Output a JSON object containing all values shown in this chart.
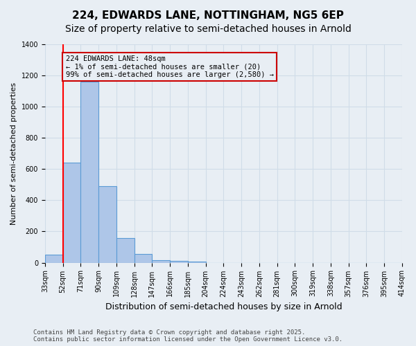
{
  "title": "224, EDWARDS LANE, NOTTINGHAM, NG5 6EP",
  "subtitle": "Size of property relative to semi-detached houses in Arnold",
  "xlabel": "Distribution of semi-detached houses by size in Arnold",
  "ylabel": "Number of semi-detached properties",
  "bin_labels": [
    "33sqm",
    "52sqm",
    "71sqm",
    "90sqm",
    "109sqm",
    "128sqm",
    "147sqm",
    "166sqm",
    "185sqm",
    "204sqm",
    "224sqm",
    "243sqm",
    "262sqm",
    "281sqm",
    "300sqm",
    "319sqm",
    "338sqm",
    "357sqm",
    "376sqm",
    "395sqm",
    "414sqm"
  ],
  "bar_values": [
    50,
    640,
    1160,
    490,
    160,
    55,
    18,
    12,
    8,
    0,
    0,
    0,
    0,
    0,
    0,
    0,
    0,
    0,
    0,
    0
  ],
  "bar_color": "#aec6e8",
  "bar_edge_color": "#5b9bd5",
  "grid_color": "#d0dce8",
  "bg_color": "#e8eef4",
  "property_line_x": 1,
  "property_sqm": 48,
  "annotation_text": "224 EDWARDS LANE: 48sqm\n← 1% of semi-detached houses are smaller (20)\n99% of semi-detached houses are larger (2,580) →",
  "annotation_box_color": "#cc0000",
  "ylim": [
    0,
    1400
  ],
  "yticks": [
    0,
    200,
    400,
    600,
    800,
    1000,
    1200,
    1400
  ],
  "footer_text": "Contains HM Land Registry data © Crown copyright and database right 2025.\nContains public sector information licensed under the Open Government Licence v3.0.",
  "title_fontsize": 11,
  "subtitle_fontsize": 10,
  "xlabel_fontsize": 9,
  "ylabel_fontsize": 8,
  "tick_fontsize": 7,
  "annotation_fontsize": 7.5,
  "footer_fontsize": 6.5
}
